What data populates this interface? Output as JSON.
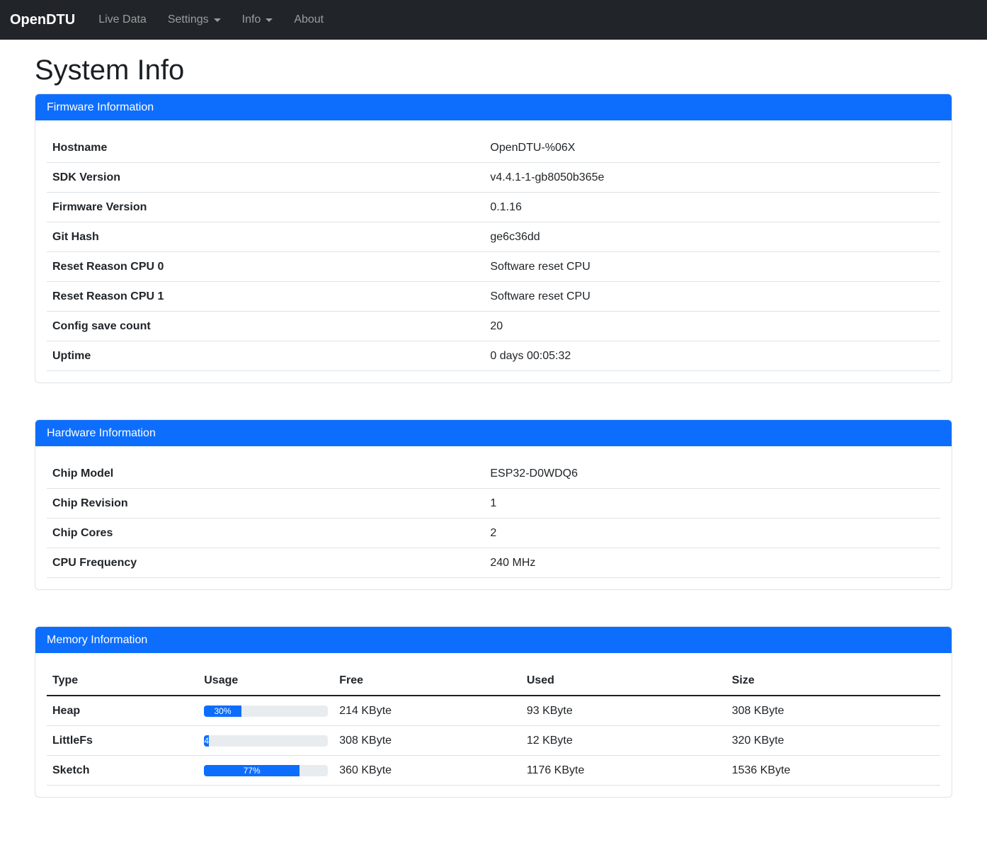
{
  "navbar": {
    "brand": "OpenDTU",
    "items": [
      {
        "label": "Live Data",
        "dropdown": false
      },
      {
        "label": "Settings",
        "dropdown": true
      },
      {
        "label": "Info",
        "dropdown": true
      },
      {
        "label": "About",
        "dropdown": false
      }
    ]
  },
  "page_title": "System Info",
  "colors": {
    "primary": "#0d6efd",
    "navbar_bg": "#212529",
    "nav_link": "#9b9d9e",
    "card_border": "#dee2e6",
    "progress_track": "#e9ecef",
    "text": "#212529"
  },
  "firmware_card": {
    "title": "Firmware Information",
    "rows": [
      {
        "label": "Hostname",
        "value": "OpenDTU-%06X"
      },
      {
        "label": "SDK Version",
        "value": "v4.4.1-1-gb8050b365e"
      },
      {
        "label": "Firmware Version",
        "value": "0.1.16"
      },
      {
        "label": "Git Hash",
        "value": "ge6c36dd"
      },
      {
        "label": "Reset Reason CPU 0",
        "value": "Software reset CPU"
      },
      {
        "label": "Reset Reason CPU 1",
        "value": "Software reset CPU"
      },
      {
        "label": "Config save count",
        "value": "20"
      },
      {
        "label": "Uptime",
        "value": "0 days 00:05:32"
      }
    ]
  },
  "hardware_card": {
    "title": "Hardware Information",
    "rows": [
      {
        "label": "Chip Model",
        "value": "ESP32-D0WDQ6"
      },
      {
        "label": "Chip Revision",
        "value": "1"
      },
      {
        "label": "Chip Cores",
        "value": "2"
      },
      {
        "label": "CPU Frequency",
        "value": "240 MHz"
      }
    ]
  },
  "memory_card": {
    "title": "Memory Information",
    "columns": [
      "Type",
      "Usage",
      "Free",
      "Used",
      "Size"
    ],
    "rows": [
      {
        "type": "Heap",
        "usage_percent": 30,
        "usage_label": "30%",
        "free": "214 KByte",
        "used": "93 KByte",
        "size": "308 KByte"
      },
      {
        "type": "LittleFs",
        "usage_percent": 4,
        "usage_label": "4",
        "free": "308 KByte",
        "used": "12 KByte",
        "size": "320 KByte"
      },
      {
        "type": "Sketch",
        "usage_percent": 77,
        "usage_label": "77%",
        "free": "360 KByte",
        "used": "1176 KByte",
        "size": "1536 KByte"
      }
    ]
  }
}
